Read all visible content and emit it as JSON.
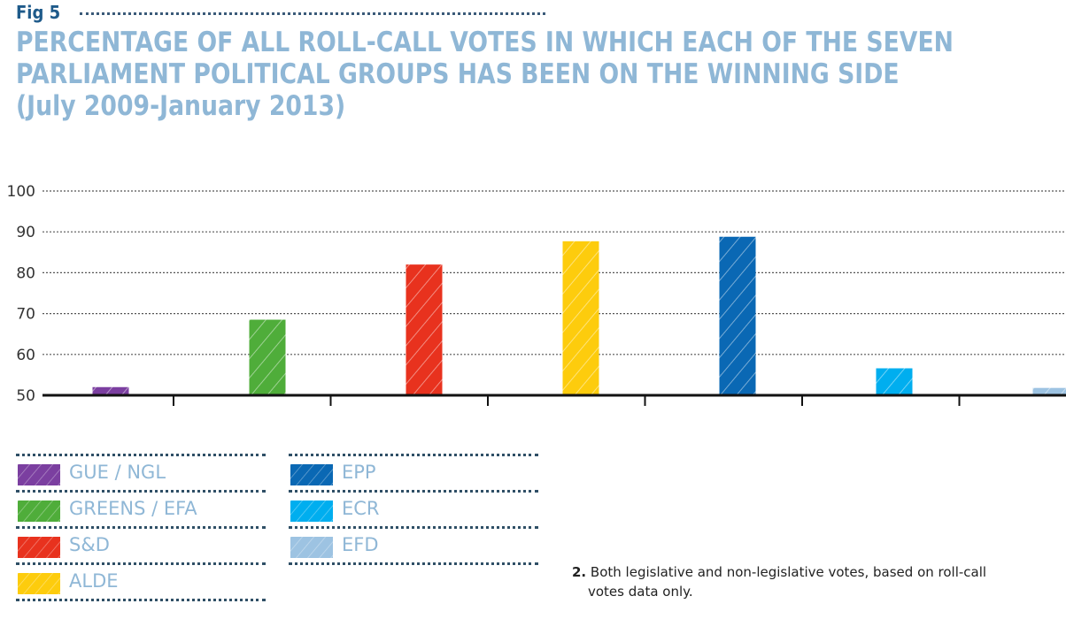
{
  "figure": {
    "label": "Fig 5",
    "title_lines": [
      "PERCENTAGE OF ALL ROLL-CALL VOTES IN WHICH EACH OF THE SEVEN",
      "PARLIAMENT POLITICAL GROUPS HAS BEEN ON THE WINNING SIDE",
      "(July 2009-January 2013)"
    ]
  },
  "chart_data": {
    "type": "bar",
    "title": "PERCENTAGE OF ALL ROLL-CALL VOTES IN WHICH EACH OF THE SEVEN PARLIAMENT POLITICAL GROUPS HAS BEEN ON THE WINNING SIDE (July 2009-January 2013)",
    "categories": [
      "GUE / NGL",
      "GREENS / EFA",
      "S&D",
      "ALDE",
      "EPP",
      "ECR",
      "EFD"
    ],
    "values": [
      52,
      68.5,
      82,
      87.7,
      88.8,
      56.6,
      51.8
    ],
    "colors": [
      "#7b3fa0",
      "#4fad3a",
      "#e8321e",
      "#fdcc0d",
      "#0a68b4",
      "#00aeef",
      "#9dc3e2"
    ],
    "xlabel": "",
    "ylabel": "",
    "ylim": [
      50,
      100
    ],
    "yticks": [
      "50",
      "60",
      "70",
      "80",
      "90",
      "100"
    ],
    "grid": true,
    "legend": "bottom-left",
    "hatched": true
  },
  "legend": {
    "left": [
      "GUE / NGL",
      "GREENS / EFA",
      "S&D",
      "ALDE"
    ],
    "right": [
      "EPP",
      "ECR",
      "EFD"
    ]
  },
  "footnote": {
    "number": "2.",
    "line1": "Both legislative and non-legislative votes, based on roll-call",
    "line2": "votes data only."
  }
}
